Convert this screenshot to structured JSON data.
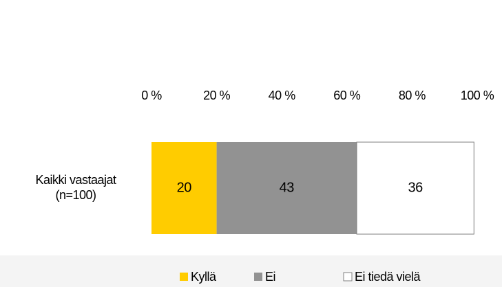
{
  "chart_data": {
    "type": "bar",
    "orientation": "horizontal",
    "stacked": true,
    "categories": [
      "Kaikki vastaajat\n(n=100)"
    ],
    "series": [
      {
        "name": "Kyllä",
        "color": "#ffcc00",
        "label_color": "#000000",
        "values": [
          20
        ]
      },
      {
        "name": "Ei",
        "color": "#929292",
        "label_color": "#ffffff",
        "values": [
          43
        ]
      },
      {
        "name": "Ei tiedä vielä",
        "color": "#ffffff",
        "label_color": "#000000",
        "values": [
          36
        ]
      }
    ],
    "xlim": [
      0,
      100
    ],
    "xticks": [
      {
        "value": 0,
        "label": "0 %"
      },
      {
        "value": 20,
        "label": "20 %"
      },
      {
        "value": 40,
        "label": "40 %"
      },
      {
        "value": 60,
        "label": "60 %"
      },
      {
        "value": 80,
        "label": "80 %"
      },
      {
        "value": 100,
        "label": "100 %"
      }
    ],
    "legend": "bottom"
  }
}
